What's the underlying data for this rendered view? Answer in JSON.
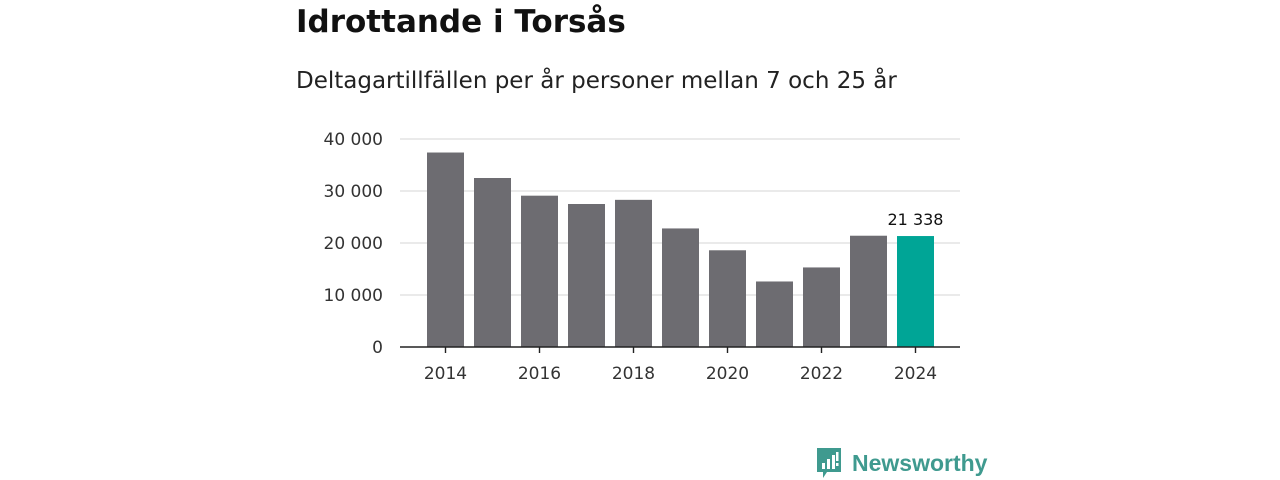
{
  "header": {
    "title": "Idrottande i Torsås",
    "subtitle": "Deltagartillfällen per år personer mellan 7 och 25 år"
  },
  "chart_data": {
    "type": "bar",
    "title": "Idrottande i Torsås",
    "subtitle": "Deltagartillfällen per år personer mellan 7 och 25 år",
    "xlabel": "",
    "ylabel": "",
    "categories": [
      "2014",
      "2015",
      "2016",
      "2017",
      "2018",
      "2019",
      "2020",
      "2021",
      "2022",
      "2023",
      "2024"
    ],
    "values": [
      37400,
      32500,
      29100,
      27500,
      28300,
      22800,
      18600,
      12600,
      15300,
      21400,
      21338
    ],
    "ylim": [
      0,
      40000
    ],
    "y_ticks": [
      0,
      10000,
      20000,
      30000,
      40000
    ],
    "y_tick_labels": [
      "0",
      "10 000",
      "20 000",
      "30 000",
      "40 000"
    ],
    "x_tick_labels": [
      "2014",
      "2016",
      "2018",
      "2020",
      "2022",
      "2024"
    ],
    "highlight_index": 10,
    "highlight_label": "21 338",
    "grid": true,
    "colors": {
      "bar": "#6d6c71",
      "highlight": "#00a596",
      "grid": "#dddddd",
      "axis": "#222222"
    }
  },
  "brand": {
    "name": "Newsworthy",
    "icon": "newsworthy-logo-icon",
    "color": "#3f9a8f"
  }
}
